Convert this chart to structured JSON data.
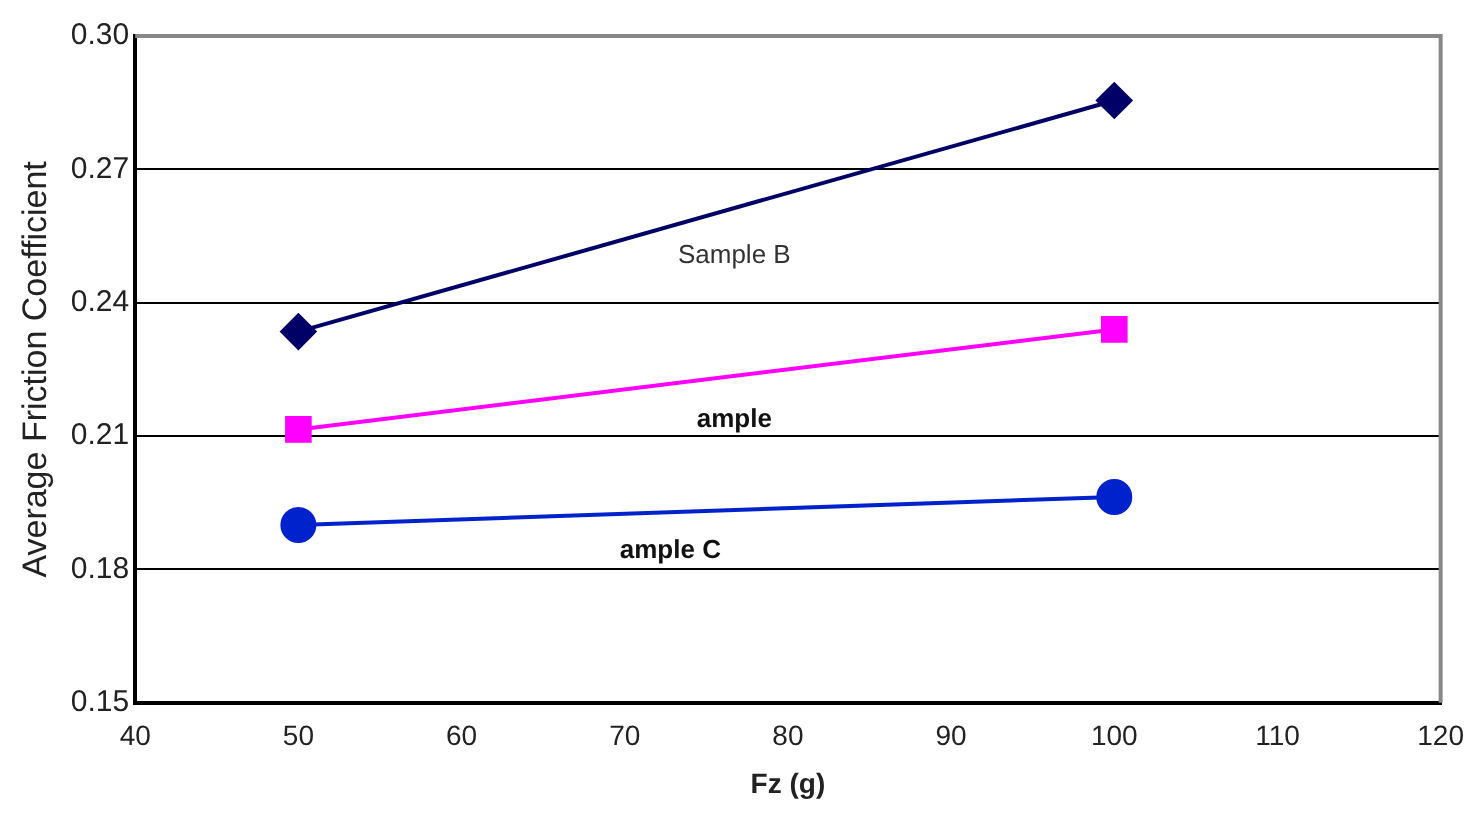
{
  "chart_data": {
    "type": "line",
    "xlabel": "Fz (g)",
    "ylabel": "Average Friction Coefficient",
    "x": [
      50,
      100
    ],
    "series": [
      {
        "name": "Sample B",
        "color": "#000066",
        "values": [
          0.2335,
          0.2855
        ],
        "marker": "diamond"
      },
      {
        "name": "ample",
        "color": "#ff00ff",
        "values": [
          0.2115,
          0.234
        ],
        "marker": "square"
      },
      {
        "name": "ample C",
        "color": "#0022cc",
        "values": [
          0.19,
          0.1963
        ],
        "marker": "circle"
      }
    ],
    "xlim": [
      40,
      120
    ],
    "xticks": [
      40,
      50,
      60,
      70,
      80,
      90,
      100,
      110,
      120
    ],
    "ylim": [
      0.15,
      0.3
    ],
    "yticks": [
      {
        "value": 0.15,
        "label": "0.15"
      },
      {
        "value": 0.18,
        "label": "0.18"
      },
      {
        "value": 0.21,
        "label": "0.21"
      },
      {
        "value": 0.24,
        "label": "0.24"
      },
      {
        "value": 0.27,
        "label": "0.27"
      },
      {
        "value": 0.3,
        "label": "0.30"
      }
    ],
    "grid": "y",
    "legend": false,
    "line_style": "solid"
  }
}
